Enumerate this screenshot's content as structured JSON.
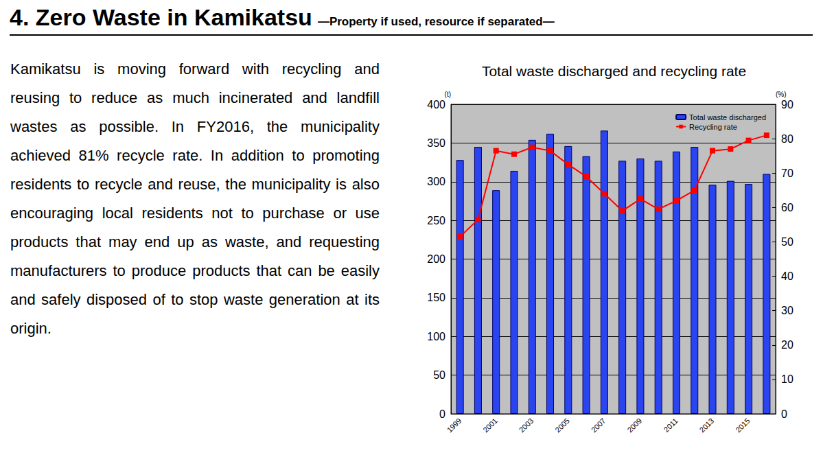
{
  "heading": {
    "title": "4. Zero Waste in Kamikatsu",
    "subtitle": "—Property if used, resource if separated—"
  },
  "paragraph": "Kamikatsu is moving forward with recycling and reusing to reduce as much incinerated and landfill wastes as possible. In FY2016, the municipality achieved 81% recycle rate. In addition to promoting residents to recycle and reuse, the municipality is also encouraging local residents not to purchase or use products that may end up as waste, and requesting manufacturers to produce products that can be easily and safely disposed of to stop waste generation at its origin.",
  "chart_data": {
    "type": "bar",
    "title": "Total waste discharged and recycling rate",
    "ylabel": "(t)",
    "y2label": "(%)",
    "categories": [
      "1999",
      null,
      "2001",
      null,
      "2003",
      null,
      "2005",
      null,
      "2007",
      null,
      "2009",
      null,
      "2011",
      null,
      "2013",
      null,
      "2015",
      null
    ],
    "series": [
      {
        "name": "Total waste discharged",
        "type": "bar",
        "color": "#2a44f0",
        "values": [
          328,
          345,
          289,
          314,
          354,
          362,
          346,
          333,
          366,
          327,
          330,
          327,
          339,
          345,
          296,
          301,
          297,
          310
        ]
      },
      {
        "name": "Recycling rate",
        "type": "line",
        "axis": "y2",
        "color": "#ff0000",
        "marker": "square",
        "values": [
          51.5,
          56.5,
          76.5,
          75.5,
          77.5,
          76.5,
          72.5,
          69,
          64,
          59,
          62.5,
          59.5,
          62,
          65,
          76.5,
          77,
          79.5,
          81
        ]
      }
    ],
    "ylim": [
      0,
      400
    ],
    "yticks": [
      0,
      50,
      100,
      150,
      200,
      250,
      300,
      350,
      400
    ],
    "y2lim": [
      0,
      90
    ],
    "y2ticks": [
      0,
      10,
      20,
      30,
      40,
      50,
      60,
      70,
      80,
      90
    ],
    "grid": true,
    "legend": "upper right"
  }
}
